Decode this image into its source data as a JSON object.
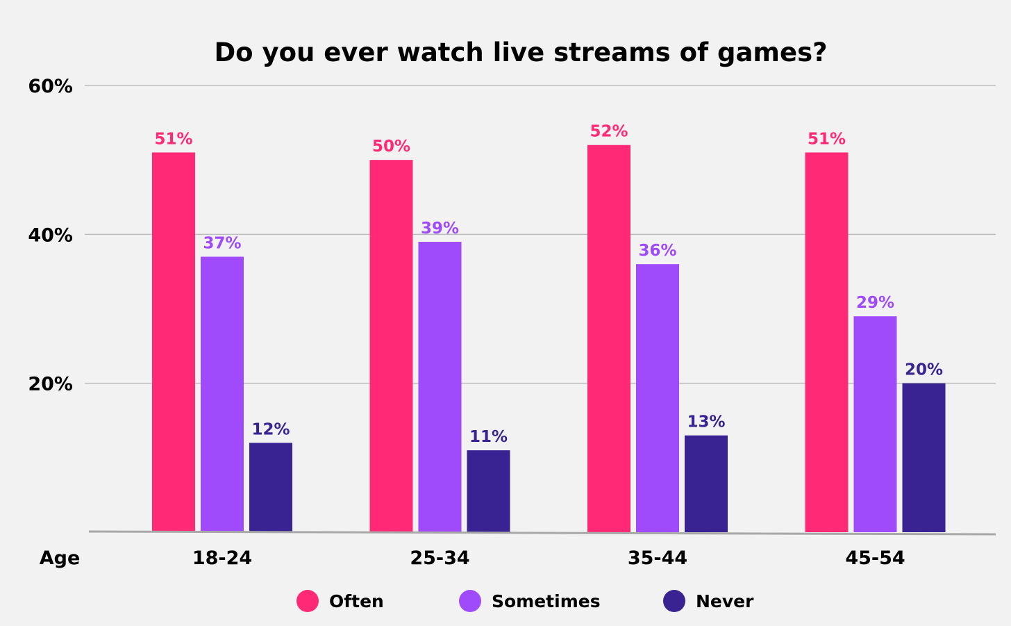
{
  "chart_data": {
    "type": "bar",
    "title": "Do you ever watch live streams of games?",
    "xlabel": "Age",
    "ylabel": "",
    "categories": [
      "18-24",
      "25-34",
      "35-44",
      "45-54"
    ],
    "series": [
      {
        "name": "Often",
        "color": "#ff2975",
        "values": [
          51,
          50,
          52,
          51
        ],
        "labels": [
          "51%",
          "50%",
          "52%",
          "51%"
        ]
      },
      {
        "name": "Sometimes",
        "color": "#a04bfb",
        "values": [
          37,
          39,
          36,
          29
        ],
        "labels": [
          "37%",
          "39%",
          "36%",
          "29%"
        ]
      },
      {
        "name": "Never",
        "color": "#392393",
        "values": [
          12,
          11,
          13,
          20
        ],
        "labels": [
          "12%",
          "11%",
          "13%",
          "20%"
        ]
      }
    ],
    "ylim": [
      0,
      60
    ],
    "yticks": [
      20,
      40,
      60
    ],
    "ytick_labels": [
      "20%",
      "40%",
      "60%"
    ],
    "grid": true,
    "legend": "bottom-center"
  }
}
